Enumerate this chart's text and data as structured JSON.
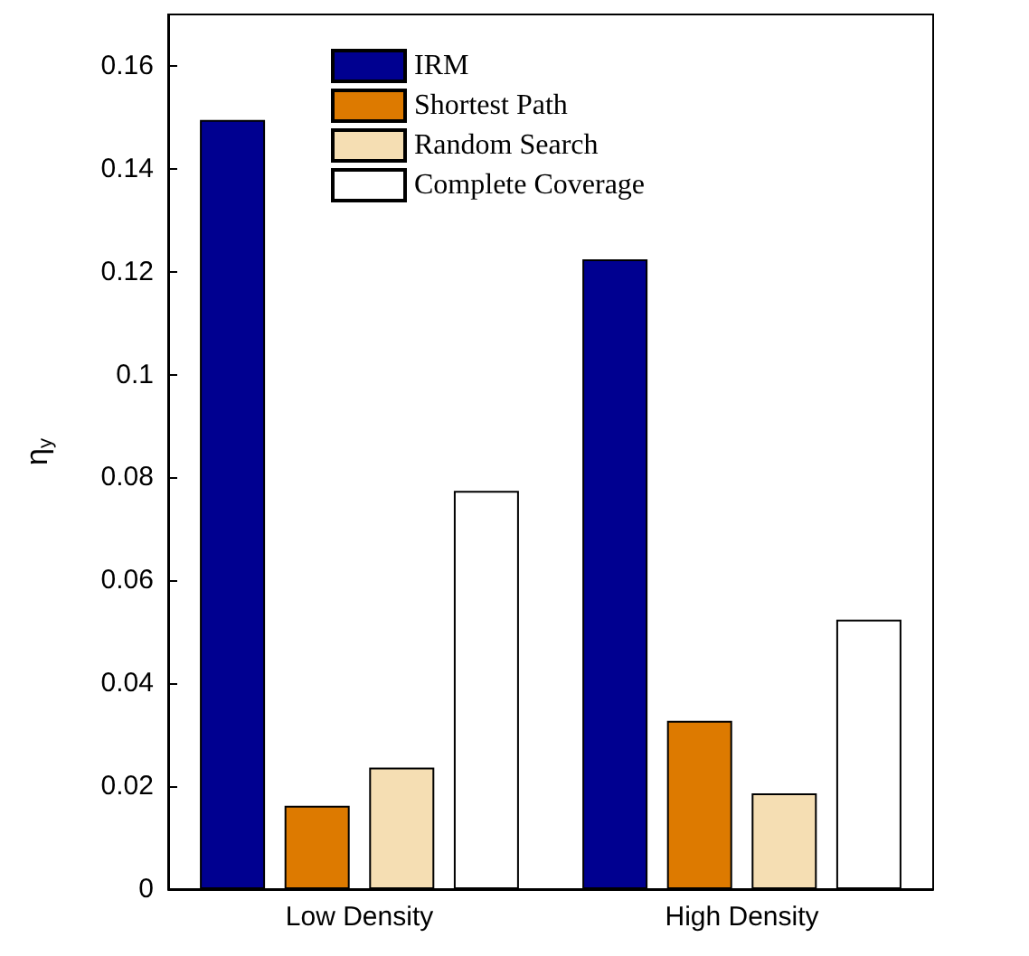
{
  "chart_data": {
    "type": "bar",
    "ylabel": "η$_{y}$",
    "categories": [
      "Low Density",
      "High Density"
    ],
    "series": [
      {
        "name": "IRM",
        "color": "#000090",
        "values": [
          0.1495,
          0.1224
        ]
      },
      {
        "name": "Shortest Path",
        "color": "#dd7a00",
        "values": [
          0.0162,
          0.0327
        ]
      },
      {
        "name": "Random Search",
        "color": "#f5deb3",
        "values": [
          0.0236,
          0.0186
        ]
      },
      {
        "name": "Complete Coverage",
        "color": "#ffffff",
        "values": [
          0.0774,
          0.0524
        ]
      }
    ],
    "ylim": [
      0,
      0.17
    ],
    "yticks": [
      0,
      0.02,
      0.04,
      0.06,
      0.08,
      0.1,
      0.12,
      0.14,
      0.16
    ],
    "grid": false,
    "legend": "top left"
  }
}
